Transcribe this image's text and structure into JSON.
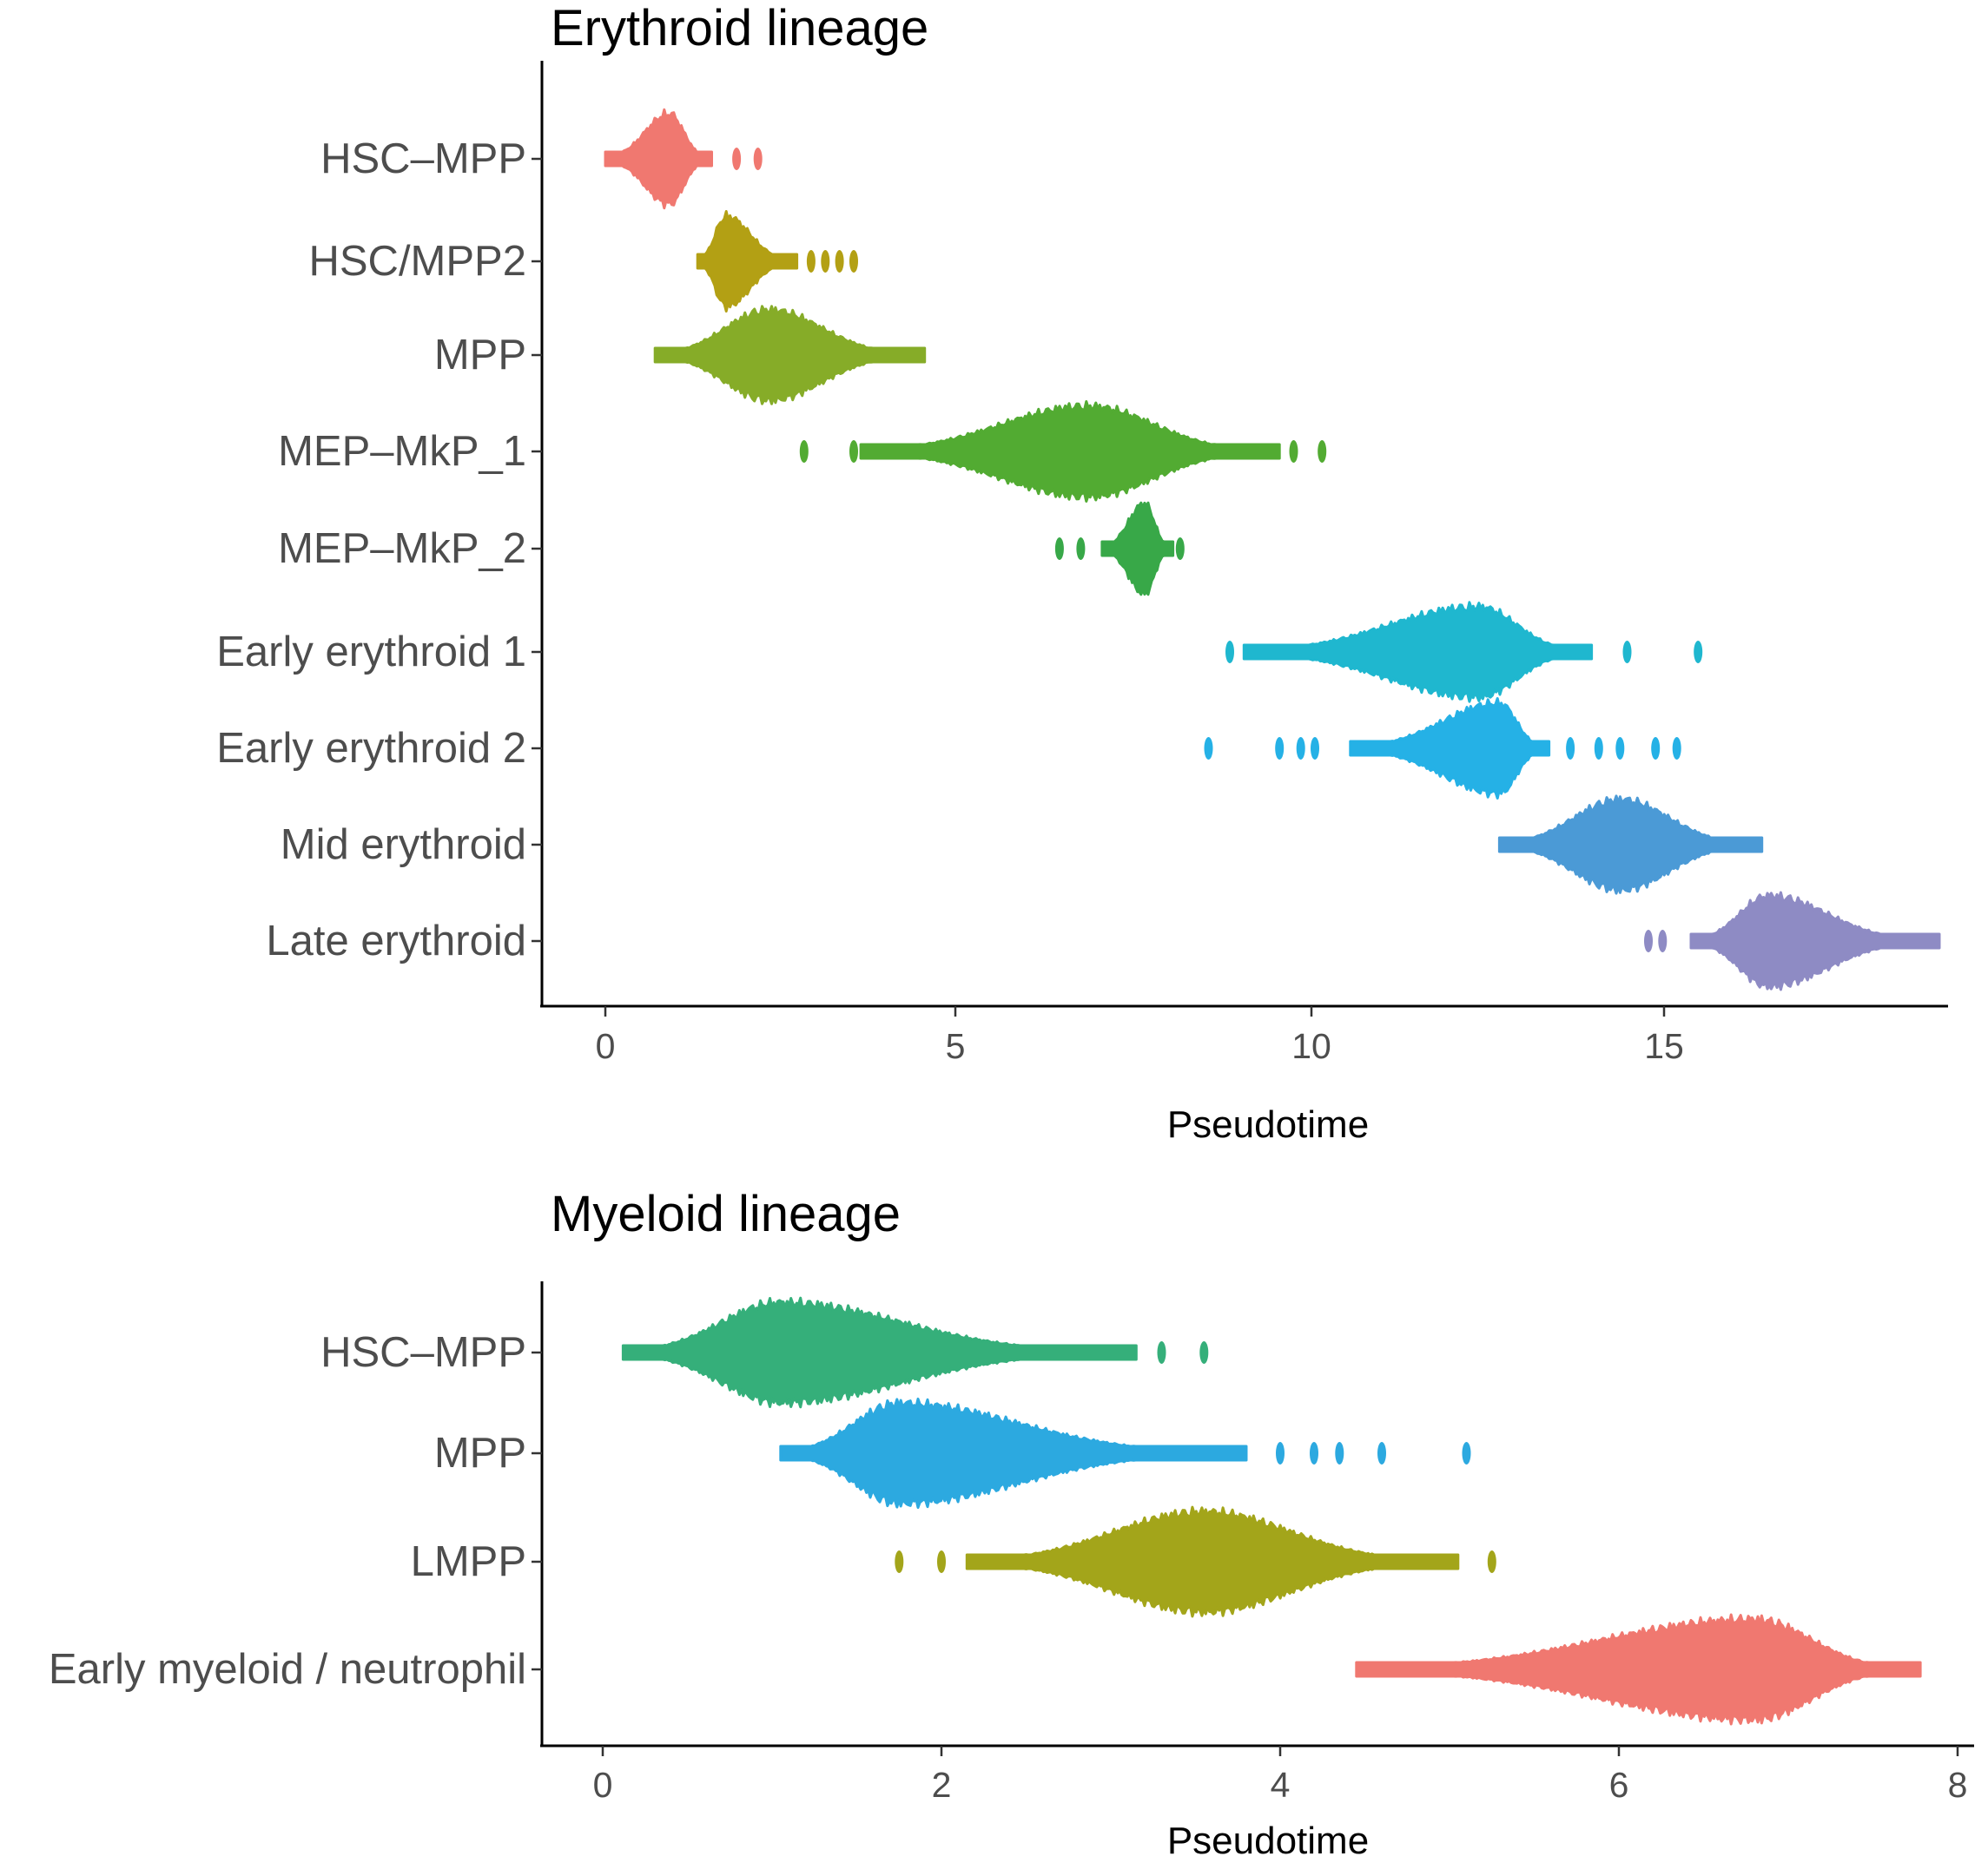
{
  "colors": {
    "hsc_mpp_ery": "#F07870",
    "hsc_mpp2": "#B3A014",
    "mpp_ery": "#86AC28",
    "mep_mkp_1": "#52AB32",
    "mep_mkp_2": "#38A848",
    "early_ery_1": "#1FB7CF",
    "early_ery_2": "#25B1E6",
    "mid_ery": "#4B9AD6",
    "late_ery": "#8E8BC4",
    "hsc_mpp_mye": "#35AF7A",
    "mpp_mye": "#2CA9E0",
    "lmpp": "#A3A51A",
    "early_myeloid": "#F07870"
  },
  "chart_data": [
    {
      "type": "scatter",
      "subtype": "beeswarm",
      "title": "Erythroid lineage",
      "xlabel": "Pseudotime",
      "ylabel": "",
      "xlim": [
        -0.9,
        19.4
      ],
      "xticks": [
        0,
        5,
        10,
        15
      ],
      "xtick_labels": [
        "0",
        "5",
        "10",
        "15"
      ],
      "grid": false,
      "legend": "none",
      "categories": [
        "HSC–MPP",
        "HSC/MPP2",
        "MPP",
        "MEP–MkP_1",
        "MEP–MkP_2",
        "Early erythroid 1",
        "Early erythroid 2",
        "Mid erythroid",
        "Late erythroid"
      ],
      "series": [
        {
          "color_key": "hsc_mpp_ery",
          "min": 0.0,
          "peak": 0.9,
          "max": 1.5,
          "outliers": [
            1.85,
            2.15
          ]
        },
        {
          "color_key": "hsc_mpp2",
          "min": 1.3,
          "peak": 1.7,
          "max": 2.7,
          "outliers": [
            2.9,
            3.1,
            3.3,
            3.5
          ]
        },
        {
          "color_key": "mpp_ery",
          "min": 0.7,
          "peak": 2.3,
          "max": 4.5,
          "outliers": []
        },
        {
          "color_key": "mep_mkp_1",
          "min": 3.6,
          "peak": 6.8,
          "max": 9.5,
          "outliers": [
            2.8,
            3.5,
            9.7,
            10.1
          ]
        },
        {
          "color_key": "mep_mkp_2",
          "min": 7.0,
          "peak": 7.6,
          "max": 8.0,
          "outliers": [
            6.4,
            6.7,
            8.1
          ]
        },
        {
          "color_key": "early_ery_1",
          "min": 9.0,
          "peak": 12.3,
          "max": 13.9,
          "outliers": [
            8.8,
            14.4,
            15.4
          ]
        },
        {
          "color_key": "early_ery_2",
          "min": 10.5,
          "peak": 12.6,
          "max": 13.3,
          "outliers": [
            8.5,
            9.5,
            9.8,
            10.0,
            13.6,
            14.0,
            14.3,
            14.8,
            15.1
          ]
        },
        {
          "color_key": "mid_ery",
          "min": 12.6,
          "peak": 14.3,
          "max": 16.3,
          "outliers": []
        },
        {
          "color_key": "late_ery",
          "min": 15.3,
          "peak": 16.4,
          "max": 18.8,
          "outliers": [
            14.7,
            14.9
          ]
        }
      ]
    },
    {
      "type": "scatter",
      "subtype": "beeswarm",
      "title": "Myeloid lineage",
      "xlabel": "Pseudotime",
      "ylabel": "",
      "xlim": [
        -0.36,
        7.94
      ],
      "xticks": [
        0,
        2,
        4,
        6,
        8
      ],
      "xtick_labels": [
        "0",
        "2",
        "4",
        "6",
        "8"
      ],
      "grid": false,
      "legend": "none",
      "categories": [
        "HSC–MPP",
        "MPP",
        "LMPP",
        "Early myeloid / neutrophil"
      ],
      "series": [
        {
          "color_key": "hsc_mpp_mye",
          "min": 0.12,
          "peak": 1.05,
          "max": 3.15,
          "outliers": [
            3.3,
            3.55
          ]
        },
        {
          "color_key": "mpp_mye",
          "min": 1.05,
          "peak": 1.75,
          "max": 3.8,
          "outliers": [
            4.0,
            4.2,
            4.35,
            4.6,
            5.1
          ]
        },
        {
          "color_key": "lmpp",
          "min": 2.15,
          "peak": 3.55,
          "max": 5.05,
          "outliers": [
            1.75,
            2.0,
            5.25
          ]
        },
        {
          "color_key": "early_myeloid",
          "min": 4.45,
          "peak": 6.8,
          "max": 7.78,
          "outliers": []
        }
      ]
    }
  ]
}
